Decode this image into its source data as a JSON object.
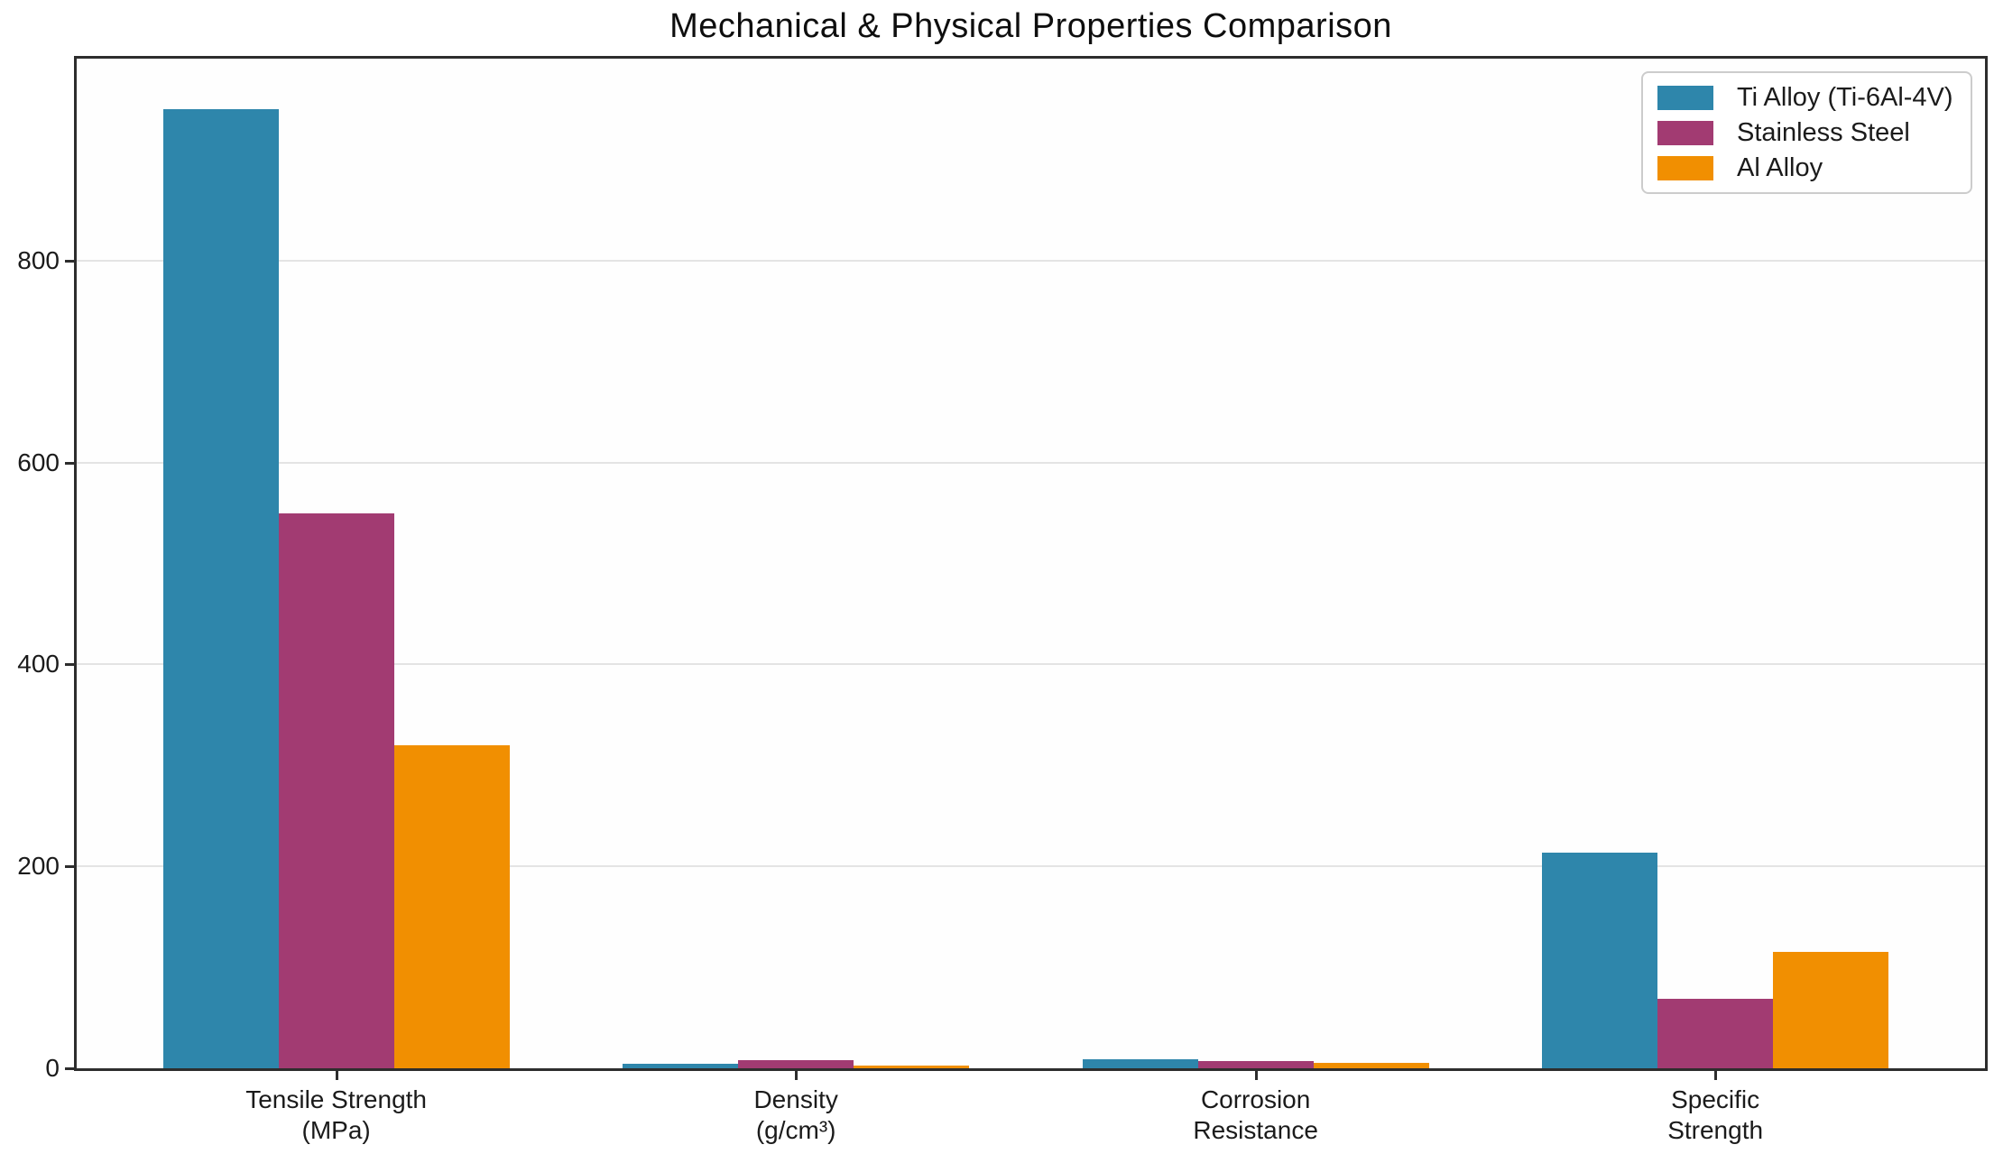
{
  "chart_data": {
    "type": "bar",
    "title": "Mechanical & Physical Properties Comparison",
    "categories": [
      [
        "Tensile Strength",
        "(MPa)"
      ],
      [
        "Density",
        "(g/cm³)"
      ],
      [
        "Corrosion",
        "Resistance"
      ],
      [
        "Specific",
        "Strength"
      ]
    ],
    "series": [
      {
        "name": "Ti Alloy (Ti-6Al-4V)",
        "color": "#2E86AB",
        "values": [
          950,
          4.43,
          9,
          214
        ]
      },
      {
        "name": "Stainless Steel",
        "color": "#A23B72",
        "values": [
          550,
          8.0,
          7,
          69
        ]
      },
      {
        "name": "Al Alloy",
        "color": "#F18F01",
        "values": [
          320,
          2.7,
          5,
          115
        ]
      }
    ],
    "xlabel": "",
    "ylabel": "",
    "yticks": [
      0,
      200,
      400,
      600,
      800
    ],
    "ylim": [
      0,
      1000
    ],
    "grid": true,
    "grid_color": "#e4e4e4",
    "spine_color": "#2d2d2d",
    "text_color": "#1b1b1b",
    "background_color": "#ffffff",
    "legend_position": "upper right"
  }
}
